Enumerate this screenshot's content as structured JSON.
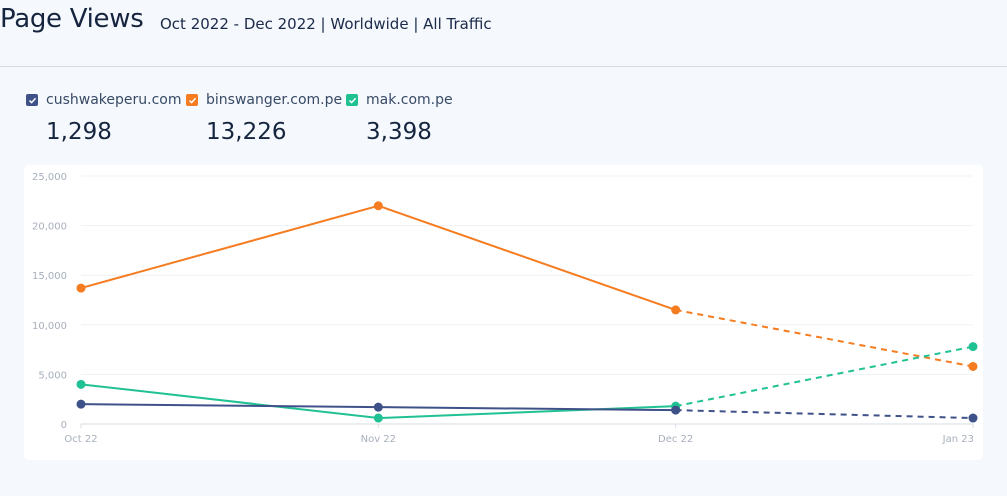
{
  "header": {
    "title": "Page Views",
    "subtitle": "Oct 2022 - Dec 2022 | Worldwide | All Traffic"
  },
  "legend": [
    {
      "label": "cushwakeperu.com",
      "value": "1,298",
      "color": "#3f5189",
      "checked": true
    },
    {
      "label": "binswanger.com.pe",
      "value": "13,226",
      "color": "#f57c20",
      "checked": true
    },
    {
      "label": "mak.com.pe",
      "value": "3,398",
      "color": "#20c192",
      "checked": true
    }
  ],
  "chart_data": {
    "type": "line",
    "title": "Page Views",
    "categories": [
      "Oct 22",
      "Nov 22",
      "Dec 22",
      "Jan 23"
    ],
    "ylim": [
      0,
      25000
    ],
    "yticks": [
      "0",
      "5,000",
      "10,000",
      "15,000",
      "20,000",
      "25,000"
    ],
    "ytick_values": [
      0,
      5000,
      10000,
      15000,
      20000,
      25000
    ],
    "grid": true,
    "projection_start_index": 2,
    "series": [
      {
        "name": "binswanger.com.pe",
        "color": "#f57c20",
        "values": [
          13700,
          22000,
          11500,
          5800
        ]
      },
      {
        "name": "mak.com.pe",
        "color": "#20c192",
        "values": [
          4000,
          600,
          1800,
          7800
        ]
      },
      {
        "name": "cushwakeperu.com",
        "color": "#3f5189",
        "values": [
          2000,
          1700,
          1400,
          600
        ]
      }
    ]
  }
}
